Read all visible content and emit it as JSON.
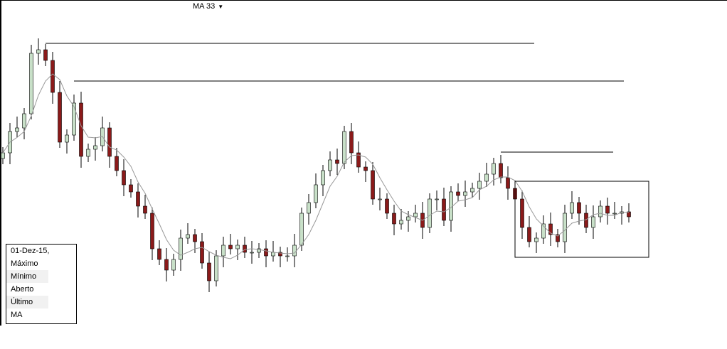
{
  "indicator": {
    "label": "MA 33",
    "icon": "caret-down-icon"
  },
  "legend": {
    "date": "01-Dez-15,",
    "rows": [
      "Máximo",
      "Mínimo",
      "Aberto",
      "Último",
      "MA"
    ]
  },
  "colors": {
    "up": "#c8e0c8",
    "down": "#8b1a1a",
    "wick": "#000000",
    "ma": "#999999",
    "drawing": "#000000"
  },
  "chart_data": {
    "type": "candlestick",
    "title": "",
    "ylim": [
      0,
      115
    ],
    "grid": false,
    "ma_label": "MA 33",
    "closes": [
      61.25,
      68.75,
      70,
      75,
      96.25,
      97.5,
      93.75,
      82.5,
      65,
      67.5,
      78.75,
      60,
      62.5,
      63.75,
      70,
      60,
      55,
      50,
      47.5,
      42.5,
      40,
      27.5,
      23.75,
      20,
      23.75,
      31.25,
      32.5,
      30,
      22.5,
      16.25,
      25,
      28.75,
      27.5,
      28.75,
      26.25,
      26.25,
      27.5,
      25,
      26.25,
      25,
      25,
      28.75,
      40,
      43.75,
      50,
      55,
      58.75,
      57.5,
      68.75,
      61.25,
      56.25,
      55,
      45,
      45,
      40,
      36.25,
      37.5,
      38.75,
      40,
      35,
      45,
      45,
      37.5,
      47.5,
      46.25,
      47.5,
      48.75,
      51.25,
      53.75,
      57.5,
      52.5,
      48.75,
      45,
      35,
      30,
      31.25,
      36.25,
      32.5,
      30,
      40,
      43.75,
      40,
      35,
      38.75,
      42.5,
      40,
      40,
      40.5,
      38.75
    ],
    "drawings": [
      {
        "type": "hline",
        "price": 99.75,
        "from": 6,
        "to": 74.7
      },
      {
        "type": "hline",
        "price": 86.5,
        "from": 10,
        "to": 87.3
      },
      {
        "type": "hline",
        "price": 61.5,
        "from": 70,
        "to": 85.8
      },
      {
        "type": "rect",
        "price_top": 51.25,
        "price_bottom": 24.5,
        "from": 72,
        "to": 90.8
      }
    ]
  }
}
